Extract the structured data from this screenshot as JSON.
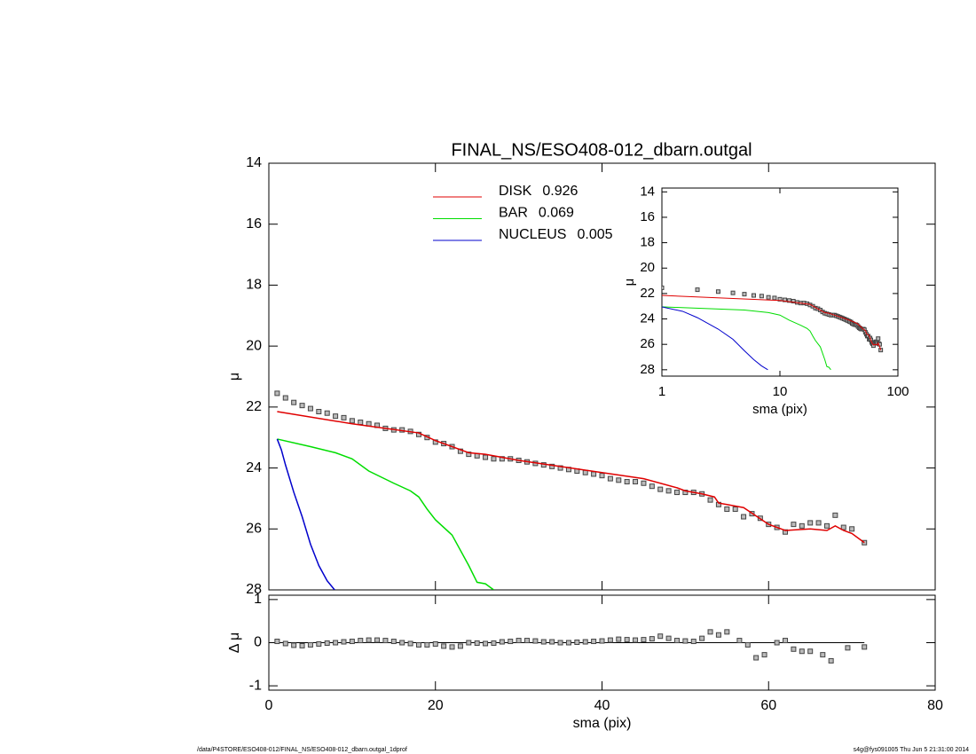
{
  "chart_data": [
    {
      "type": "line",
      "title": "FINAL_NS/ESO408-012_dbarn.outgal",
      "ylabel": "μ",
      "xlim": [
        0,
        80
      ],
      "xticks": [
        0,
        20,
        40,
        60,
        80
      ],
      "ylim": [
        14,
        28
      ],
      "yticks": [
        14,
        16,
        18,
        20,
        22,
        24,
        26,
        28
      ],
      "y_inverted": true,
      "series": [
        {
          "name": "DISK",
          "fraction": 0.926,
          "color": "#e00000",
          "x": [
            1,
            10,
            18,
            20,
            24,
            26,
            30,
            35,
            40,
            45,
            49,
            50,
            52,
            53.5,
            54,
            55,
            57,
            60,
            62,
            65,
            67,
            68,
            69,
            70,
            71.5
          ],
          "values": [
            22.15,
            22.55,
            22.85,
            23.1,
            23.5,
            23.55,
            23.75,
            23.95,
            24.15,
            24.35,
            24.65,
            24.75,
            24.85,
            24.95,
            25.15,
            25.2,
            25.3,
            25.85,
            26.05,
            26.0,
            26.05,
            25.9,
            26.05,
            26.15,
            26.45
          ]
        },
        {
          "name": "BAR",
          "fraction": 0.069,
          "color": "#00dd00",
          "x": [
            1,
            5,
            8,
            10,
            12,
            15,
            17,
            18,
            19,
            20,
            22,
            24,
            25,
            26,
            27
          ],
          "values": [
            23.05,
            23.3,
            23.5,
            23.7,
            24.1,
            24.5,
            24.75,
            24.95,
            25.35,
            25.7,
            26.2,
            27.2,
            27.75,
            27.8,
            28.0
          ]
        },
        {
          "name": "NUCLEUS",
          "fraction": 0.005,
          "color": "#0000cc",
          "x": [
            1,
            1.5,
            2,
            3,
            4,
            5,
            6,
            7,
            7.9
          ],
          "values": [
            23.05,
            23.4,
            23.9,
            24.8,
            25.6,
            26.5,
            27.2,
            27.7,
            28.0
          ]
        }
      ],
      "points": {
        "color": "#444444",
        "x": [
          1,
          2,
          3,
          4,
          5,
          6,
          7,
          8,
          9,
          10,
          11,
          12,
          13,
          14,
          15,
          16,
          17,
          18,
          19,
          20,
          21,
          22,
          23,
          24,
          25,
          26,
          27,
          28,
          29,
          30,
          31,
          32,
          33,
          34,
          35,
          36,
          37,
          38,
          39,
          40,
          41,
          42,
          43,
          44,
          45,
          46,
          47,
          48,
          49,
          50,
          51,
          52,
          53,
          54,
          55,
          56,
          57,
          58,
          59,
          60,
          61,
          62,
          63,
          64,
          65,
          66,
          67,
          68,
          69,
          70,
          71.5
        ],
        "values": [
          21.55,
          21.7,
          21.85,
          21.95,
          22.05,
          22.15,
          22.2,
          22.3,
          22.35,
          22.45,
          22.5,
          22.55,
          22.6,
          22.7,
          22.75,
          22.75,
          22.8,
          22.9,
          23.0,
          23.15,
          23.2,
          23.3,
          23.45,
          23.55,
          23.6,
          23.65,
          23.7,
          23.7,
          23.7,
          23.75,
          23.8,
          23.85,
          23.9,
          23.95,
          24.0,
          24.05,
          24.1,
          24.15,
          24.2,
          24.25,
          24.35,
          24.4,
          24.45,
          24.45,
          24.5,
          24.6,
          24.7,
          24.75,
          24.8,
          24.8,
          24.8,
          24.85,
          25.05,
          25.2,
          25.35,
          25.35,
          25.6,
          25.5,
          25.65,
          25.85,
          25.95,
          26.1,
          25.85,
          25.9,
          25.8,
          25.8,
          25.9,
          25.55,
          25.95,
          26.0,
          26.45
        ]
      }
    },
    {
      "type": "scatter",
      "ylabel": "Δ μ",
      "xlabel": "sma (pix)",
      "xlim": [
        0,
        80
      ],
      "xticks": [
        0,
        20,
        40,
        60,
        80
      ],
      "ylim": [
        -1.1,
        1.1
      ],
      "yticks": [
        -1,
        0,
        1
      ],
      "color": "#444444",
      "x": [
        1,
        2,
        3,
        4,
        5,
        6,
        7,
        8,
        9,
        10,
        11,
        12,
        13,
        14,
        15,
        16,
        17,
        18,
        19,
        20,
        21,
        22,
        23,
        24,
        25,
        26,
        27,
        28,
        29,
        30,
        31,
        32,
        33,
        34,
        35,
        36,
        37,
        38,
        39,
        40,
        41,
        42,
        43,
        44,
        45,
        46,
        47,
        48,
        49,
        50,
        51,
        52,
        53,
        54,
        55,
        56.5,
        57.5,
        58.5,
        59.5,
        61,
        62,
        63,
        64,
        65,
        66.5,
        67.5,
        69.5,
        71.5
      ],
      "values": [
        0.03,
        -0.02,
        -0.06,
        -0.07,
        -0.05,
        -0.03,
        -0.01,
        0.0,
        0.02,
        0.03,
        0.05,
        0.06,
        0.06,
        0.05,
        0.03,
        0.0,
        -0.02,
        -0.05,
        -0.05,
        -0.03,
        -0.08,
        -0.1,
        -0.08,
        0.0,
        -0.01,
        -0.02,
        -0.01,
        0.02,
        0.03,
        0.05,
        0.05,
        0.04,
        0.02,
        0.02,
        0.0,
        0.0,
        0.01,
        0.02,
        0.03,
        0.04,
        0.06,
        0.08,
        0.07,
        0.06,
        0.07,
        0.09,
        0.15,
        0.1,
        0.05,
        0.04,
        0.03,
        0.1,
        0.25,
        0.18,
        0.25,
        0.05,
        -0.05,
        -0.35,
        -0.28,
        0.0,
        0.05,
        -0.15,
        -0.2,
        -0.2,
        -0.28,
        -0.42,
        -0.12,
        -0.1
      ]
    },
    {
      "type": "line",
      "xlabel": "sma (pix)",
      "ylabel": "μ",
      "xscale": "log",
      "xlim": [
        1,
        100
      ],
      "xticks": [
        1,
        10,
        100
      ],
      "ylim": [
        13.7,
        28.5
      ],
      "yticks": [
        14,
        16,
        18,
        20,
        22,
        24,
        26,
        28
      ],
      "y_inverted": true
    }
  ],
  "footer_left": "/data/P4STORE/ESO408-012/FINAL_NS/ESO408-012_dbarn.outgal_1dprof",
  "footer_right": "s4g@fys091005  Thu Jun  5 21:31:00 2014"
}
